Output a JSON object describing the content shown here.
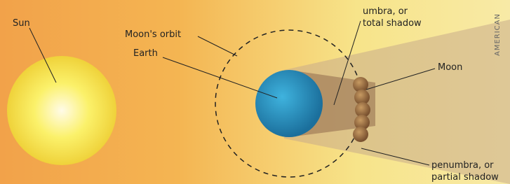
{
  "labels": {
    "sun": "Sun",
    "orbit": "Moon's orbit",
    "earth": "Earth",
    "umbra": [
      "umbra, or",
      "total shadow"
    ],
    "moon": "Moon",
    "penumbra": [
      "penumbra, or",
      "partial shadow"
    ],
    "credit": "AMERICAN"
  }
}
